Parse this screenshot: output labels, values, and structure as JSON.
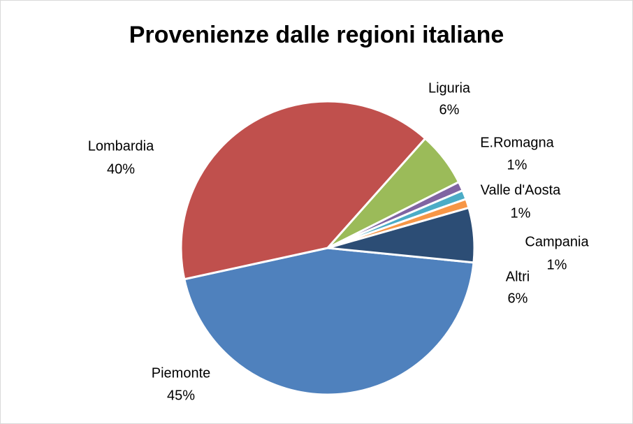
{
  "chart_data": {
    "type": "pie",
    "title": "Provenienze dalle regioni italiane",
    "categories": [
      "Piemonte",
      "Lombardia",
      "Liguria",
      "E.Romagna",
      "Valle d'Aosta",
      "Campania",
      "Altri"
    ],
    "values": [
      45,
      40,
      6,
      1,
      1,
      1,
      6
    ],
    "value_labels": [
      "45%",
      "40%",
      "6%",
      "1%",
      "1%",
      "1%",
      "6%"
    ],
    "colors": [
      "#4f81bd",
      "#c0504d",
      "#9bbb59",
      "#8064a2",
      "#4bacc6",
      "#f79646",
      "#2c4d75"
    ]
  }
}
